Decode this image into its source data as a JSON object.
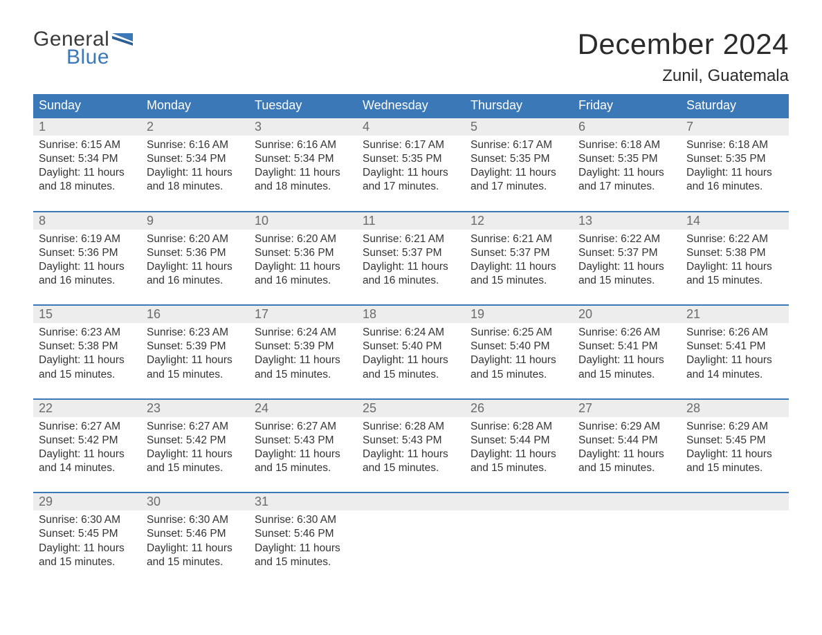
{
  "logo": {
    "textTop": "General",
    "textBottom": "Blue"
  },
  "title": "December 2024",
  "location": "Zunil, Guatemala",
  "colors": {
    "headerBg": "#3a78b7",
    "headerText": "#ffffff",
    "dayNumBg": "#ededed",
    "dayNumText": "#6b6b6b",
    "bodyText": "#333333",
    "ruleLine": "#3a78b7",
    "pageBg": "#ffffff",
    "logoGray": "#3a3a3a",
    "logoBlue": "#3a78b7"
  },
  "typography": {
    "titleFontSize": 42,
    "locationFontSize": 24,
    "headerFontSize": 18,
    "dayNumFontSize": 18,
    "cellFontSize": 15.5,
    "fontFamily": "Arial"
  },
  "layout": {
    "columns": 7,
    "weeks": 5,
    "cellLineHeight": 1.3
  },
  "dayNames": [
    "Sunday",
    "Monday",
    "Tuesday",
    "Wednesday",
    "Thursday",
    "Friday",
    "Saturday"
  ],
  "weeks": [
    [
      {
        "num": "1",
        "sunrise": "Sunrise: 6:15 AM",
        "sunset": "Sunset: 5:34 PM",
        "dl1": "Daylight: 11 hours",
        "dl2": "and 18 minutes."
      },
      {
        "num": "2",
        "sunrise": "Sunrise: 6:16 AM",
        "sunset": "Sunset: 5:34 PM",
        "dl1": "Daylight: 11 hours",
        "dl2": "and 18 minutes."
      },
      {
        "num": "3",
        "sunrise": "Sunrise: 6:16 AM",
        "sunset": "Sunset: 5:34 PM",
        "dl1": "Daylight: 11 hours",
        "dl2": "and 18 minutes."
      },
      {
        "num": "4",
        "sunrise": "Sunrise: 6:17 AM",
        "sunset": "Sunset: 5:35 PM",
        "dl1": "Daylight: 11 hours",
        "dl2": "and 17 minutes."
      },
      {
        "num": "5",
        "sunrise": "Sunrise: 6:17 AM",
        "sunset": "Sunset: 5:35 PM",
        "dl1": "Daylight: 11 hours",
        "dl2": "and 17 minutes."
      },
      {
        "num": "6",
        "sunrise": "Sunrise: 6:18 AM",
        "sunset": "Sunset: 5:35 PM",
        "dl1": "Daylight: 11 hours",
        "dl2": "and 17 minutes."
      },
      {
        "num": "7",
        "sunrise": "Sunrise: 6:18 AM",
        "sunset": "Sunset: 5:35 PM",
        "dl1": "Daylight: 11 hours",
        "dl2": "and 16 minutes."
      }
    ],
    [
      {
        "num": "8",
        "sunrise": "Sunrise: 6:19 AM",
        "sunset": "Sunset: 5:36 PM",
        "dl1": "Daylight: 11 hours",
        "dl2": "and 16 minutes."
      },
      {
        "num": "9",
        "sunrise": "Sunrise: 6:20 AM",
        "sunset": "Sunset: 5:36 PM",
        "dl1": "Daylight: 11 hours",
        "dl2": "and 16 minutes."
      },
      {
        "num": "10",
        "sunrise": "Sunrise: 6:20 AM",
        "sunset": "Sunset: 5:36 PM",
        "dl1": "Daylight: 11 hours",
        "dl2": "and 16 minutes."
      },
      {
        "num": "11",
        "sunrise": "Sunrise: 6:21 AM",
        "sunset": "Sunset: 5:37 PM",
        "dl1": "Daylight: 11 hours",
        "dl2": "and 16 minutes."
      },
      {
        "num": "12",
        "sunrise": "Sunrise: 6:21 AM",
        "sunset": "Sunset: 5:37 PM",
        "dl1": "Daylight: 11 hours",
        "dl2": "and 15 minutes."
      },
      {
        "num": "13",
        "sunrise": "Sunrise: 6:22 AM",
        "sunset": "Sunset: 5:37 PM",
        "dl1": "Daylight: 11 hours",
        "dl2": "and 15 minutes."
      },
      {
        "num": "14",
        "sunrise": "Sunrise: 6:22 AM",
        "sunset": "Sunset: 5:38 PM",
        "dl1": "Daylight: 11 hours",
        "dl2": "and 15 minutes."
      }
    ],
    [
      {
        "num": "15",
        "sunrise": "Sunrise: 6:23 AM",
        "sunset": "Sunset: 5:38 PM",
        "dl1": "Daylight: 11 hours",
        "dl2": "and 15 minutes."
      },
      {
        "num": "16",
        "sunrise": "Sunrise: 6:23 AM",
        "sunset": "Sunset: 5:39 PM",
        "dl1": "Daylight: 11 hours",
        "dl2": "and 15 minutes."
      },
      {
        "num": "17",
        "sunrise": "Sunrise: 6:24 AM",
        "sunset": "Sunset: 5:39 PM",
        "dl1": "Daylight: 11 hours",
        "dl2": "and 15 minutes."
      },
      {
        "num": "18",
        "sunrise": "Sunrise: 6:24 AM",
        "sunset": "Sunset: 5:40 PM",
        "dl1": "Daylight: 11 hours",
        "dl2": "and 15 minutes."
      },
      {
        "num": "19",
        "sunrise": "Sunrise: 6:25 AM",
        "sunset": "Sunset: 5:40 PM",
        "dl1": "Daylight: 11 hours",
        "dl2": "and 15 minutes."
      },
      {
        "num": "20",
        "sunrise": "Sunrise: 6:26 AM",
        "sunset": "Sunset: 5:41 PM",
        "dl1": "Daylight: 11 hours",
        "dl2": "and 15 minutes."
      },
      {
        "num": "21",
        "sunrise": "Sunrise: 6:26 AM",
        "sunset": "Sunset: 5:41 PM",
        "dl1": "Daylight: 11 hours",
        "dl2": "and 14 minutes."
      }
    ],
    [
      {
        "num": "22",
        "sunrise": "Sunrise: 6:27 AM",
        "sunset": "Sunset: 5:42 PM",
        "dl1": "Daylight: 11 hours",
        "dl2": "and 14 minutes."
      },
      {
        "num": "23",
        "sunrise": "Sunrise: 6:27 AM",
        "sunset": "Sunset: 5:42 PM",
        "dl1": "Daylight: 11 hours",
        "dl2": "and 15 minutes."
      },
      {
        "num": "24",
        "sunrise": "Sunrise: 6:27 AM",
        "sunset": "Sunset: 5:43 PM",
        "dl1": "Daylight: 11 hours",
        "dl2": "and 15 minutes."
      },
      {
        "num": "25",
        "sunrise": "Sunrise: 6:28 AM",
        "sunset": "Sunset: 5:43 PM",
        "dl1": "Daylight: 11 hours",
        "dl2": "and 15 minutes."
      },
      {
        "num": "26",
        "sunrise": "Sunrise: 6:28 AM",
        "sunset": "Sunset: 5:44 PM",
        "dl1": "Daylight: 11 hours",
        "dl2": "and 15 minutes."
      },
      {
        "num": "27",
        "sunrise": "Sunrise: 6:29 AM",
        "sunset": "Sunset: 5:44 PM",
        "dl1": "Daylight: 11 hours",
        "dl2": "and 15 minutes."
      },
      {
        "num": "28",
        "sunrise": "Sunrise: 6:29 AM",
        "sunset": "Sunset: 5:45 PM",
        "dl1": "Daylight: 11 hours",
        "dl2": "and 15 minutes."
      }
    ],
    [
      {
        "num": "29",
        "sunrise": "Sunrise: 6:30 AM",
        "sunset": "Sunset: 5:45 PM",
        "dl1": "Daylight: 11 hours",
        "dl2": "and 15 minutes."
      },
      {
        "num": "30",
        "sunrise": "Sunrise: 6:30 AM",
        "sunset": "Sunset: 5:46 PM",
        "dl1": "Daylight: 11 hours",
        "dl2": "and 15 minutes."
      },
      {
        "num": "31",
        "sunrise": "Sunrise: 6:30 AM",
        "sunset": "Sunset: 5:46 PM",
        "dl1": "Daylight: 11 hours",
        "dl2": "and 15 minutes."
      },
      null,
      null,
      null,
      null
    ]
  ]
}
